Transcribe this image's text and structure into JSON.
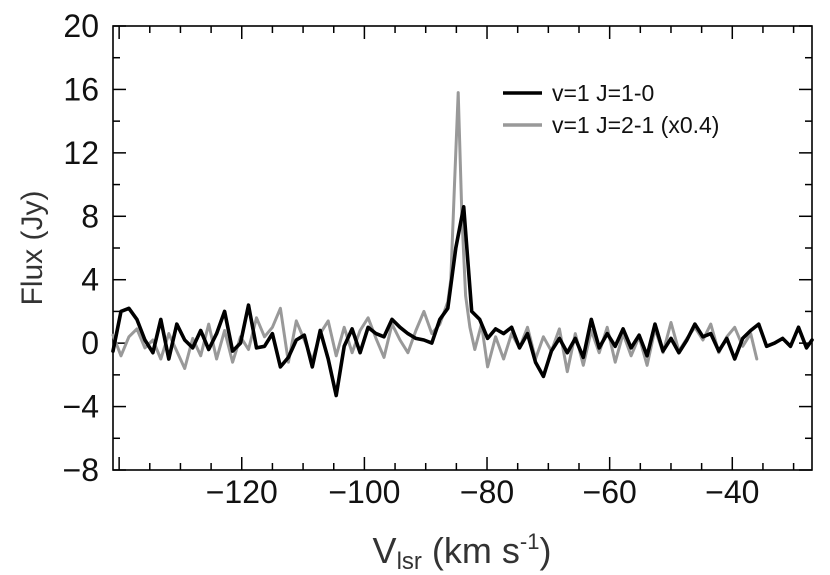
{
  "chart_data": {
    "type": "line",
    "xlabel": {
      "main": "V",
      "sub": "lsr",
      "rest": " (km s",
      "sup": "-1",
      "close": ")"
    },
    "ylabel": "Flux (Jy)",
    "xlim": [
      -141,
      -27
    ],
    "ylim": [
      -8,
      20
    ],
    "xticks": [
      -120,
      -100,
      -80,
      -60,
      -40
    ],
    "xtick_labels": [
      "−120",
      "−100",
      "−80",
      "−60",
      "−40"
    ],
    "yticks": [
      -8,
      -4,
      0,
      4,
      8,
      12,
      16,
      20
    ],
    "ytick_labels": [
      "−8",
      "−4",
      "0",
      "4",
      "8",
      "12",
      "16",
      "20"
    ],
    "x_minor_step": 5,
    "y_minor_step": 2,
    "legend_position": "top-right",
    "grid": false,
    "series": [
      {
        "name": "v=1 J=1-0",
        "color": "#000000",
        "x": [
          -141.0,
          -139.7,
          -138.4,
          -137.1,
          -135.8,
          -134.5,
          -133.2,
          -131.9,
          -130.6,
          -129.3,
          -128.0,
          -126.7,
          -125.4,
          -124.1,
          -122.8,
          -121.5,
          -120.2,
          -118.9,
          -117.6,
          -116.3,
          -115.0,
          -113.7,
          -112.4,
          -111.1,
          -109.8,
          -108.5,
          -107.2,
          -105.9,
          -104.6,
          -103.3,
          -102.0,
          -100.7,
          -99.4,
          -98.1,
          -96.8,
          -95.5,
          -94.2,
          -92.9,
          -91.6,
          -90.3,
          -89.0,
          -87.7,
          -86.4,
          -85.1,
          -83.8,
          -82.5,
          -81.2,
          -79.9,
          -78.6,
          -77.3,
          -76.0,
          -74.7,
          -73.4,
          -72.1,
          -70.8,
          -69.5,
          -68.2,
          -66.9,
          -65.6,
          -64.3,
          -63.0,
          -61.7,
          -60.4,
          -59.1,
          -57.8,
          -56.5,
          -55.2,
          -53.9,
          -52.6,
          -51.3,
          -50.0,
          -48.7,
          -47.4,
          -46.1,
          -44.8,
          -43.5,
          -42.2,
          -40.9,
          -39.6,
          -38.3,
          -37.0,
          -35.7,
          -34.4,
          -33.1,
          -31.8,
          -30.5,
          -29.2,
          -27.9,
          -27.0
        ],
        "y": [
          -0.5,
          2.0,
          2.2,
          1.5,
          0.2,
          -0.6,
          1.5,
          -1.0,
          1.2,
          0.2,
          -0.3,
          0.8,
          -0.4,
          0.6,
          2.0,
          -0.5,
          0.0,
          2.4,
          -0.3,
          -0.2,
          0.6,
          -1.5,
          -0.9,
          0.2,
          0.5,
          -1.5,
          0.8,
          -1.0,
          -3.3,
          -0.2,
          0.9,
          -0.6,
          1.0,
          0.6,
          0.4,
          1.5,
          1.0,
          0.6,
          0.3,
          0.2,
          0.0,
          1.5,
          2.2,
          6.0,
          8.6,
          2.0,
          1.5,
          0.3,
          0.9,
          0.6,
          1.0,
          -0.3,
          0.6,
          -1.2,
          -2.1,
          -0.5,
          0.3,
          -0.6,
          0.3,
          -0.9,
          1.5,
          -0.3,
          0.6,
          -0.2,
          0.9,
          -0.3,
          0.5,
          -0.8,
          1.2,
          -0.5,
          0.3,
          -0.6,
          0.2,
          1.2,
          0.4,
          0.6,
          -0.5,
          0.3,
          -1.0,
          0.3,
          0.8,
          1.2,
          -0.2,
          0.0,
          0.3,
          -0.2,
          1.0,
          -0.3,
          0.2
        ]
      },
      {
        "name": "v=1 J=2-1 (x0.4)",
        "color": "#999999",
        "x": [
          -141.0,
          -139.7,
          -138.4,
          -137.1,
          -135.8,
          -134.5,
          -133.2,
          -131.9,
          -130.6,
          -129.3,
          -128.0,
          -126.7,
          -125.4,
          -124.1,
          -122.8,
          -121.5,
          -120.2,
          -118.9,
          -117.6,
          -116.3,
          -115.0,
          -113.7,
          -112.4,
          -111.1,
          -109.8,
          -108.5,
          -107.2,
          -105.9,
          -104.6,
          -103.3,
          -102.0,
          -100.7,
          -99.4,
          -98.1,
          -96.8,
          -95.5,
          -94.2,
          -92.9,
          -91.6,
          -90.3,
          -89.0,
          -87.7,
          -86.4,
          -85.9,
          -85.3,
          -84.7,
          -84.1,
          -83.5,
          -82.8,
          -82.0,
          -80.9,
          -79.9,
          -78.6,
          -77.3,
          -76.0,
          -74.7,
          -73.4,
          -72.1,
          -70.8,
          -69.5,
          -68.2,
          -66.9,
          -65.6,
          -64.3,
          -63.0,
          -61.7,
          -60.4,
          -59.1,
          -57.8,
          -56.5,
          -55.2,
          -53.9,
          -52.6,
          -51.3,
          -50.0,
          -48.7,
          -47.4,
          -46.1,
          -44.8,
          -43.5,
          -42.2,
          -40.9,
          -39.6,
          -38.3,
          -37.0,
          -36.0
        ],
        "y": [
          0.5,
          -0.8,
          0.4,
          0.9,
          -0.3,
          0.2,
          -1.0,
          0.6,
          -0.5,
          -1.6,
          0.3,
          -0.8,
          1.2,
          -1.0,
          0.8,
          -1.2,
          0.4,
          -0.4,
          1.6,
          0.4,
          1.0,
          2.2,
          -1.2,
          1.4,
          0.2,
          -1.1,
          0.6,
          1.4,
          -0.8,
          1.0,
          -0.6,
          0.8,
          1.6,
          0.3,
          -0.9,
          1.2,
          0.2,
          -0.6,
          0.8,
          2.0,
          0.6,
          1.2,
          2.6,
          4.0,
          10.0,
          15.8,
          8.0,
          3.0,
          1.0,
          -0.4,
          1.2,
          -1.5,
          0.4,
          -1.0,
          0.6,
          -0.3,
          1.0,
          -1.0,
          0.4,
          -0.5,
          0.9,
          -1.8,
          0.6,
          -1.4,
          0.8,
          -0.6,
          1.0,
          -1.2,
          0.6,
          -0.8,
          0.4,
          -1.4,
          0.9,
          -0.6,
          1.3,
          -0.5,
          0.3,
          1.0,
          0.2,
          1.2,
          -0.6,
          0.4,
          1.0,
          -0.2,
          0.6,
          -1.0
        ]
      }
    ]
  }
}
